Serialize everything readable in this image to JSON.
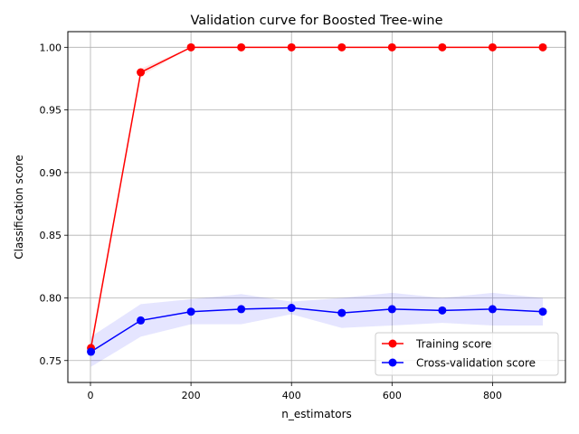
{
  "chart_data": {
    "type": "line",
    "title": "Validation curve for Boosted Tree-wine",
    "xlabel": "n_estimators",
    "ylabel": "Classification score",
    "xlim": [
      -45,
      945
    ],
    "ylim": [
      0.7325,
      1.0125
    ],
    "xticks": [
      0,
      200,
      400,
      600,
      800
    ],
    "xtick_labels": [
      "0",
      "200",
      "400",
      "600",
      "800"
    ],
    "yticks": [
      0.75,
      0.8,
      0.85,
      0.9,
      0.95,
      1.0
    ],
    "ytick_labels": [
      "0.75",
      "0.80",
      "0.85",
      "0.90",
      "0.95",
      "1.00"
    ],
    "grid": true,
    "legend_position": "lower-right",
    "x": [
      1,
      100,
      200,
      300,
      400,
      500,
      600,
      700,
      800,
      900
    ],
    "series": [
      {
        "name": "Training score",
        "color": "#ff0000",
        "band_color": "#ff0000",
        "values": [
          0.76,
          0.98,
          1.0,
          1.0,
          1.0,
          1.0,
          1.0,
          1.0,
          1.0,
          1.0
        ],
        "std": [
          0.003,
          0.003,
          0.0,
          0.0,
          0.0,
          0.0,
          0.0,
          0.0,
          0.0,
          0.0
        ]
      },
      {
        "name": "Cross-validation score",
        "color": "#0000ff",
        "band_color": "#0000ff",
        "values": [
          0.757,
          0.782,
          0.789,
          0.791,
          0.792,
          0.788,
          0.791,
          0.79,
          0.791,
          0.789
        ],
        "std": [
          0.012,
          0.013,
          0.01,
          0.012,
          0.005,
          0.012,
          0.013,
          0.01,
          0.013,
          0.011
        ]
      }
    ]
  }
}
